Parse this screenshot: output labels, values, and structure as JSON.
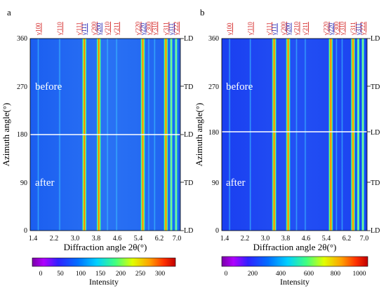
{
  "panels": [
    {
      "letter": "a",
      "before_label": "before",
      "after_label": "after",
      "ylabel": "Azimuth angle(°)",
      "xlabel": "Diffraction angle 2θ(°)",
      "y_ticks": [
        "0",
        "90",
        "180",
        "270",
        "360"
      ],
      "x_ticks": [
        "1.4",
        "2.2",
        "3.0",
        "3.8",
        "4.6",
        "5.4",
        "6.2",
        "7.0"
      ],
      "right_ticks": [
        "LD",
        "TD",
        "LD",
        "TD",
        "LD"
      ],
      "colorbar": {
        "label": "Intensity",
        "ticks": [
          "0",
          "50",
          "100",
          "150",
          "200",
          "250",
          "300"
        ],
        "min": -40,
        "max": 320
      },
      "peaks": [
        {
          "label": "γ100",
          "color": "#d21e1e",
          "x": 1.7
        },
        {
          "label": "γ'110",
          "color": "#d21e1e",
          "x": 2.5
        },
        {
          "label": "γ'111",
          "color": "#d21e1e",
          "x": 3.22
        },
        {
          "label": "γ111",
          "color": "#1c1cb0",
          "x": 3.42
        },
        {
          "label": "γ'200",
          "color": "#d21e1e",
          "x": 3.78
        },
        {
          "label": "γ200",
          "color": "#1c1cb0",
          "x": 3.96
        },
        {
          "label": "γ'210",
          "color": "#d21e1e",
          "x": 4.28
        },
        {
          "label": "γ'211",
          "color": "#d21e1e",
          "x": 4.62
        },
        {
          "label": "γ'220",
          "color": "#d21e1e",
          "x": 5.42
        },
        {
          "label": "γ220",
          "color": "#1c1cb0",
          "x": 5.6
        },
        {
          "label": "γ'300",
          "color": "#d21e1e",
          "x": 5.82
        },
        {
          "label": "γ'310",
          "color": "#d21e1e",
          "x": 6.04
        },
        {
          "label": "γ'311",
          "color": "#d21e1e",
          "x": 6.46
        },
        {
          "label": "γ311",
          "color": "#1c1cb0",
          "x": 6.66
        },
        {
          "label": "γ'222",
          "color": "#d21e1e",
          "x": 6.84
        }
      ]
    },
    {
      "letter": "b",
      "before_label": "before",
      "after_label": "after",
      "ylabel": "Azimuth angle(°)",
      "xlabel": "Diffraction angle 2θ(°)",
      "y_ticks": [
        "0",
        "90",
        "180",
        "270",
        "360"
      ],
      "x_ticks": [
        "1.4",
        "2.2",
        "3.0",
        "3.8",
        "4.6",
        "5.4",
        "6.2",
        "7.0"
      ],
      "right_ticks": [
        "LD",
        "TD",
        "LD",
        "TD",
        "LD"
      ],
      "colorbar": {
        "label": "Intensity",
        "ticks": [
          "0",
          "200",
          "400",
          "600",
          "800",
          "1000"
        ],
        "min": -30,
        "max": 1060
      },
      "peaks": [
        {
          "label": "γ100",
          "color": "#d21e1e",
          "x": 1.7
        },
        {
          "label": "γ'110",
          "color": "#d21e1e",
          "x": 2.5
        },
        {
          "label": "γ'111",
          "color": "#d21e1e",
          "x": 3.22
        },
        {
          "label": "γ111",
          "color": "#1c1cb0",
          "x": 3.42
        },
        {
          "label": "γ'200",
          "color": "#d21e1e",
          "x": 3.78
        },
        {
          "label": "γ200",
          "color": "#1c1cb0",
          "x": 3.96
        },
        {
          "label": "γ'210",
          "color": "#d21e1e",
          "x": 4.28
        },
        {
          "label": "γ'211",
          "color": "#d21e1e",
          "x": 4.62
        },
        {
          "label": "γ'220",
          "color": "#d21e1e",
          "x": 5.42
        },
        {
          "label": "γ220",
          "color": "#1c1cb0",
          "x": 5.6
        },
        {
          "label": "γ'300",
          "color": "#d21e1e",
          "x": 5.82
        },
        {
          "label": "γ'310",
          "color": "#d21e1e",
          "x": 6.04
        },
        {
          "label": "γ'311",
          "color": "#d21e1e",
          "x": 6.46
        },
        {
          "label": "γ311",
          "color": "#1c1cb0",
          "x": 6.66
        },
        {
          "label": "γ'222",
          "color": "#d21e1e",
          "x": 6.84
        }
      ]
    }
  ]
}
